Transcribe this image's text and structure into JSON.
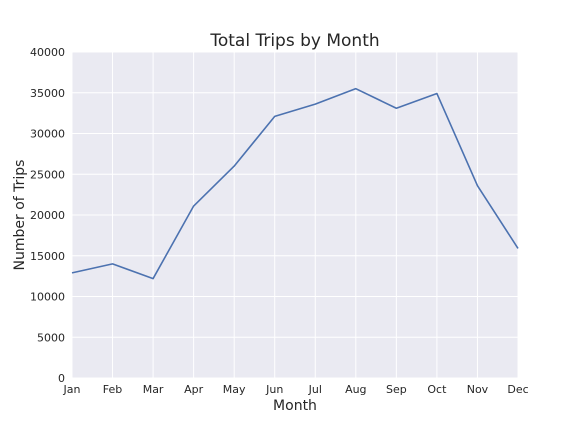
{
  "chart_data": {
    "type": "line",
    "title": "Total Trips by Month",
    "xlabel": "Month",
    "ylabel": "Number of Trips",
    "categories": [
      "Jan",
      "Feb",
      "Mar",
      "Apr",
      "May",
      "Jun",
      "Jul",
      "Aug",
      "Sep",
      "Oct",
      "Nov",
      "Dec"
    ],
    "series": [
      {
        "values": [
          12900,
          14000,
          12200,
          21100,
          26000,
          32100,
          33600,
          35500,
          33100,
          34900,
          23600,
          15900
        ],
        "color": "#4c72b0"
      }
    ],
    "ylim": [
      0,
      40000
    ],
    "yticks": [
      0,
      5000,
      10000,
      15000,
      20000,
      25000,
      30000,
      35000,
      40000
    ],
    "grid": true,
    "background": "#eaeaf2"
  }
}
